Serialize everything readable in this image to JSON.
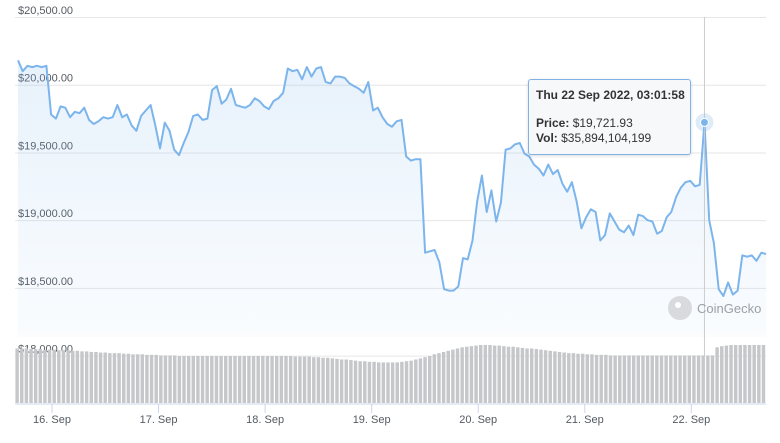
{
  "chart_data": {
    "type": "line",
    "series_color": "#7cb5ec",
    "volume_color": "#c5c7ca",
    "y_axis": {
      "ylim": [
        17650,
        20500
      ],
      "ticks": [
        18000,
        18500,
        19000,
        19500,
        20000,
        20500
      ],
      "tick_labels": [
        "$18,000.00",
        "$18,500.00",
        "$19,000.00",
        "$19,500.00",
        "$20,000.00",
        "$20,500.00"
      ]
    },
    "x_axis": {
      "tick_labels": [
        "16. Sep",
        "17. Sep",
        "18. Sep",
        "19. Sep",
        "20. Sep",
        "21. Sep",
        "22. Sep"
      ]
    },
    "price": [
      20180,
      20100,
      20140,
      20130,
      20140,
      20130,
      20140,
      19780,
      19750,
      19840,
      19830,
      19760,
      19800,
      19790,
      19830,
      19740,
      19710,
      19730,
      19760,
      19750,
      19760,
      19850,
      19760,
      19780,
      19700,
      19660,
      19770,
      19810,
      19850,
      19700,
      19530,
      19720,
      19660,
      19520,
      19480,
      19570,
      19650,
      19770,
      19780,
      19740,
      19750,
      19960,
      19990,
      19860,
      19890,
      19970,
      19850,
      19840,
      19830,
      19850,
      19900,
      19880,
      19840,
      19820,
      19880,
      19900,
      19940,
      20120,
      20100,
      20110,
      20040,
      20130,
      20060,
      20120,
      20130,
      20020,
      20010,
      20060,
      20060,
      20050,
      20010,
      19990,
      19970,
      19940,
      20020,
      19810,
      19830,
      19760,
      19710,
      19690,
      19730,
      19740,
      19470,
      19440,
      19450,
      19450,
      18760,
      18770,
      18780,
      18690,
      18490,
      18480,
      18480,
      18510,
      18720,
      18710,
      18850,
      19140,
      19330,
      19060,
      19220,
      18990,
      19130,
      19520,
      19530,
      19560,
      19570,
      19490,
      19470,
      19410,
      19380,
      19330,
      19410,
      19340,
      19370,
      19270,
      19210,
      19280,
      19140,
      18940,
      19020,
      19080,
      19060,
      18850,
      18890,
      19050,
      18990,
      18930,
      18910,
      18960,
      18890,
      19040,
      19030,
      19000,
      18990,
      18900,
      18920,
      19020,
      19060,
      19170,
      19240,
      19280,
      19290,
      19250,
      19260,
      19721.93,
      19000,
      18830,
      18490,
      18440,
      18540,
      18450,
      18480,
      18740,
      18730,
      18740,
      18700,
      18760,
      18750
    ],
    "volume_level": [
      0.94,
      0.94,
      0.94,
      0.93,
      0.93,
      0.93,
      0.92,
      0.92,
      0.92,
      0.91,
      0.91,
      0.91,
      0.9,
      0.9,
      0.89,
      0.89,
      0.88,
      0.88,
      0.87,
      0.87,
      0.86,
      0.86,
      0.86,
      0.85,
      0.85,
      0.84,
      0.84,
      0.84,
      0.83,
      0.83,
      0.83,
      0.82,
      0.82,
      0.82,
      0.82,
      0.81,
      0.81,
      0.81,
      0.81,
      0.81,
      0.81,
      0.81,
      0.81,
      0.81,
      0.81,
      0.81,
      0.81,
      0.81,
      0.81,
      0.81,
      0.81,
      0.81,
      0.81,
      0.81,
      0.81,
      0.81,
      0.81,
      0.81,
      0.81,
      0.81,
      0.8,
      0.8,
      0.8,
      0.8,
      0.79,
      0.79,
      0.78,
      0.78,
      0.77,
      0.76,
      0.75,
      0.75,
      0.74,
      0.73,
      0.72,
      0.72,
      0.71,
      0.71,
      0.7,
      0.7,
      0.7,
      0.7,
      0.7,
      0.71,
      0.72,
      0.73,
      0.75,
      0.77,
      0.79,
      0.81,
      0.84,
      0.86,
      0.88,
      0.9,
      0.92,
      0.94,
      0.96,
      0.97,
      0.98,
      0.99,
      1.0,
      1.0,
      1.0,
      0.99,
      0.99,
      0.98,
      0.97,
      0.97,
      0.96,
      0.95,
      0.94,
      0.94,
      0.93,
      0.92,
      0.91,
      0.9,
      0.89,
      0.88,
      0.87,
      0.86,
      0.86,
      0.85,
      0.85,
      0.84,
      0.84,
      0.83,
      0.83,
      0.83,
      0.82,
      0.82,
      0.82,
      0.82,
      0.82,
      0.82,
      0.82,
      0.82,
      0.82,
      0.82,
      0.82,
      0.82,
      0.82,
      0.82,
      0.82,
      0.82,
      0.82,
      0.82,
      0.82,
      0.82,
      0.82,
      0.82,
      0.82,
      0.96,
      0.98,
      0.99,
      1.0,
      1.0,
      1.0,
      1.0,
      1.0,
      1.0,
      1.0,
      1.0
    ],
    "tooltip": {
      "date": "Thu 22 Sep 2022, 03:01:58",
      "price_label": "Price:",
      "price_value": "$19,721.93",
      "vol_label": "Vol:",
      "vol_value": "$35,894,104,199",
      "point_index": 145
    },
    "brand": "CoinGecko"
  }
}
